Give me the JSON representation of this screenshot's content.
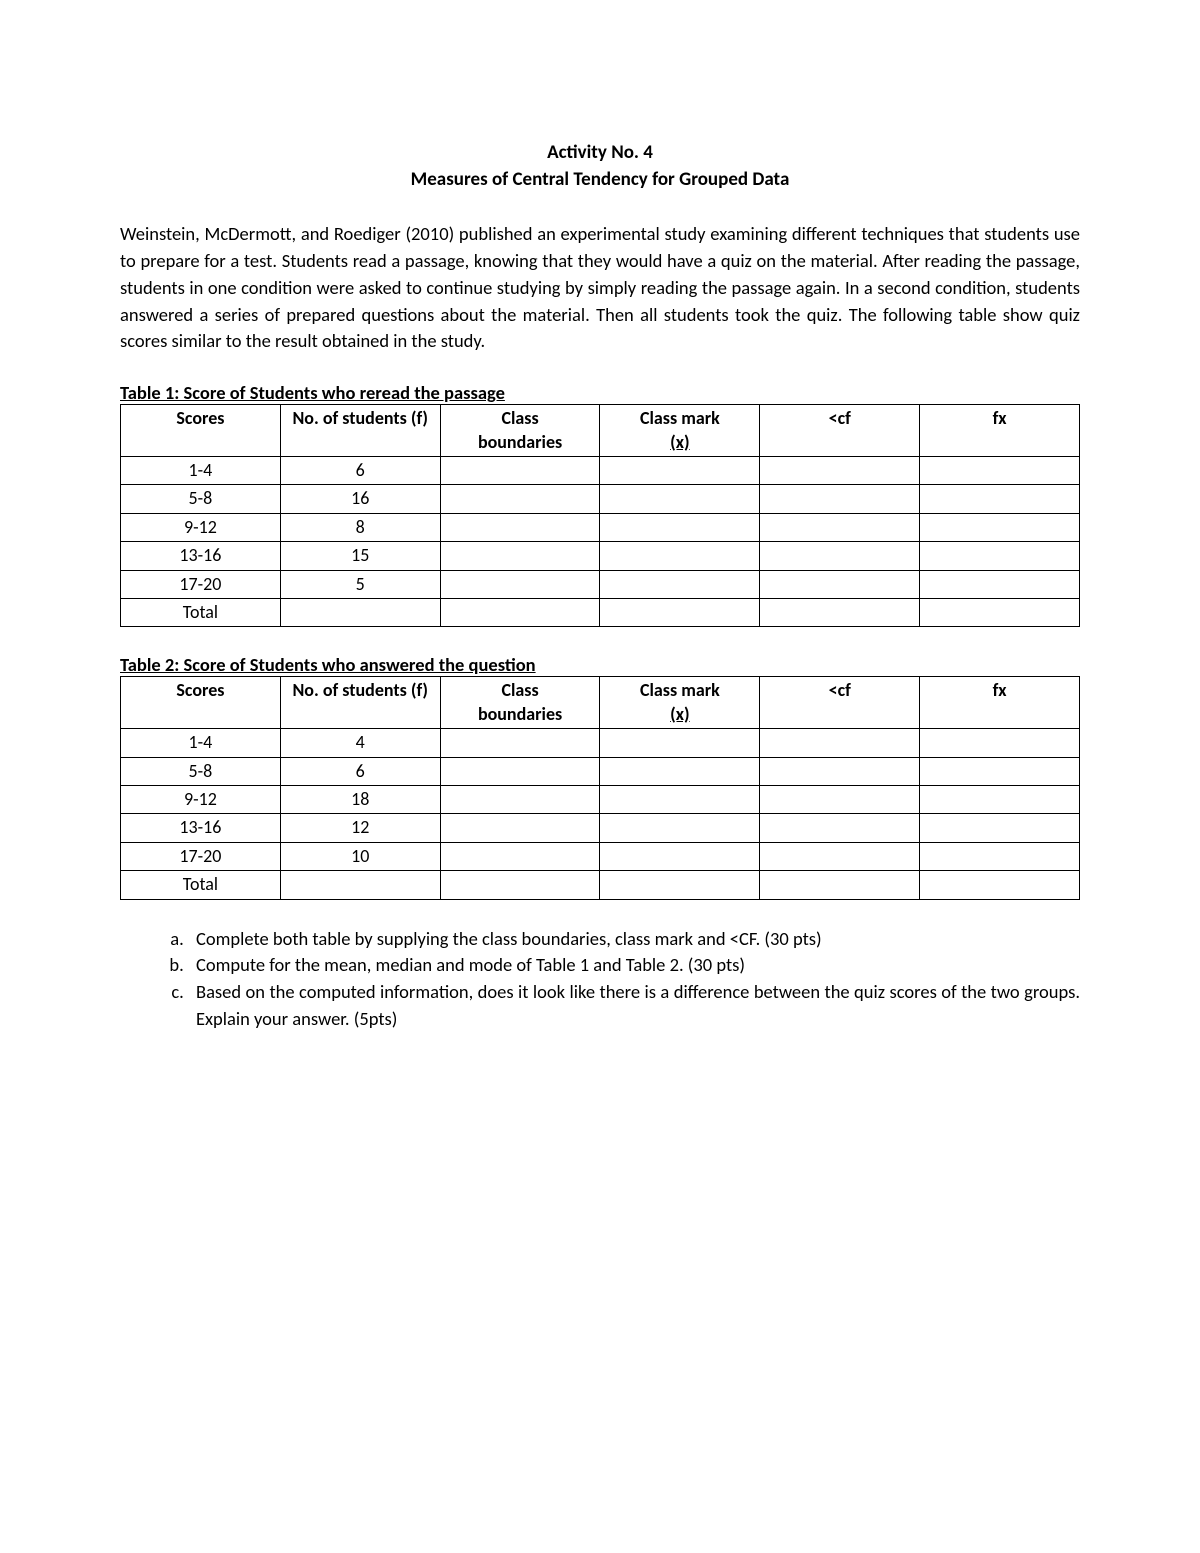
{
  "title_line1": "Activity No. 4",
  "title_line2": "Measures of Central Tendency for Grouped Data",
  "intro": "Weinstein, McDermott, and Roediger (2010) published an experimental study examining different techniques that students use to prepare for a test. Students read a passage, knowing that they would have a quiz on the material. After reading the passage, students in one condition were asked to continue studying by simply reading the passage again. In a second condition, students answered a series of prepared questions about the material. Then all students took the quiz. The following table show quiz scores similar to the result obtained in the study.",
  "headers": {
    "scores": "Scores",
    "f": "No. of students (f)",
    "cb_line1": "Class",
    "cb_line2": "boundaries",
    "cm_line1": "Class mark",
    "cm_line2": "(x)",
    "cf": "<cf",
    "fx": "fx",
    "total": "Total"
  },
  "table1": {
    "caption": "Table 1: Score of Students who reread the passage",
    "rows": [
      {
        "scores": "1-4",
        "f": "6"
      },
      {
        "scores": "5-8",
        "f": "16"
      },
      {
        "scores": "9-12",
        "f": "8"
      },
      {
        "scores": "13-16",
        "f": "15"
      },
      {
        "scores": "17-20",
        "f": "5"
      }
    ]
  },
  "table2": {
    "caption": "Table 2: Score of Students who answered the question",
    "rows": [
      {
        "scores": "1-4",
        "f": "4"
      },
      {
        "scores": "5-8",
        "f": "6"
      },
      {
        "scores": "9-12",
        "f": "18"
      },
      {
        "scores": "13-16",
        "f": "12"
      },
      {
        "scores": "17-20",
        "f": "10"
      }
    ]
  },
  "questions": {
    "a": "Complete both table by supplying the class boundaries, class mark and <CF. (30 pts)",
    "b": "Compute for the mean, median and mode of Table 1 and Table 2. (30 pts)",
    "c": "Based on the computed information, does it look like there is a difference between the quiz scores of the two groups. Explain your answer. (5pts)"
  },
  "style": {
    "text_color": "#000000",
    "background_color": "#ffffff",
    "border_color": "#000000",
    "title_fontsize": 19,
    "body_fontsize": 18.5,
    "table_fontsize": 18
  }
}
